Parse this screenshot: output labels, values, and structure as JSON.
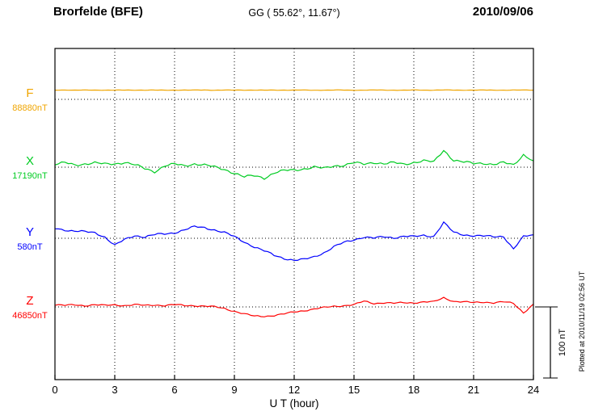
{
  "header": {
    "station": "Brorfelde (BFE)",
    "coords": "GG ( 55.62°,  11.67°)",
    "date": "2010/09/06"
  },
  "scale_bar": {
    "label": "100 nT"
  },
  "footer": {
    "note": "Plotted at 2010/11/19 02:56 UT"
  },
  "chart_data": {
    "type": "line",
    "title": "Brorfelde (BFE) magnetogram",
    "subtitle": "GG ( 55.62°,  11.67°)",
    "date": "2010/09/06",
    "xlabel": "U T (hour)",
    "xlim": [
      0,
      24
    ],
    "xticks": [
      0,
      3,
      6,
      9,
      12,
      15,
      18,
      21,
      24
    ],
    "x_step_hours": 0.5,
    "grid": "dotted-vertical-at-ticks",
    "scale_bar_nT": 100,
    "frame_color": "#000000",
    "series": [
      {
        "name": "F",
        "baseline_value_label": "88880nT",
        "baseline_nT": 88880,
        "color": "#f0a500",
        "baseline_frac": 0.1537,
        "values_nT_offset": [
          13,
          13.2,
          12.9,
          13,
          13.1,
          13,
          12.9,
          13,
          13.1,
          13,
          13,
          12.9,
          13.1,
          13,
          13,
          13.2,
          12.9,
          13,
          13,
          13.1,
          13,
          12.9,
          13,
          13.1,
          13,
          13,
          12.9,
          13,
          13.1,
          13,
          12.9,
          13,
          13.1,
          13,
          13,
          12.9,
          13.1,
          13,
          13,
          13.2,
          12.9,
          13,
          13.1,
          13,
          12.9,
          13,
          13.1,
          13,
          13
        ]
      },
      {
        "name": "X",
        "baseline_value_label": "17190nT",
        "baseline_nT": 17190,
        "color": "#00cc22",
        "baseline_frac": 0.3585,
        "values_nT_offset": [
          4,
          6,
          3,
          5,
          6,
          4,
          5,
          7,
          3,
          -2,
          -6,
          2,
          4,
          2,
          5,
          3,
          0,
          -3,
          -8,
          -14,
          -12,
          -15,
          -8,
          -5,
          -4,
          -2,
          0,
          -2,
          2,
          3,
          6,
          4,
          7,
          5,
          6,
          4,
          7,
          9,
          7,
          24,
          10,
          7,
          5,
          6,
          4,
          6,
          3,
          18,
          9
        ]
      },
      {
        "name": "Y",
        "baseline_value_label": "580nT",
        "baseline_nT": 580,
        "color": "#0000ff",
        "baseline_frac": 0.5732,
        "values_nT_offset": [
          14,
          12,
          10,
          9,
          8,
          2,
          -10,
          -2,
          4,
          2,
          5,
          6,
          8,
          12,
          16,
          15,
          12,
          8,
          2,
          -5,
          -12,
          -18,
          -24,
          -28,
          -31,
          -30,
          -26,
          -20,
          -12,
          -6,
          -2,
          2,
          0,
          2,
          1,
          3,
          2,
          4,
          3,
          22,
          8,
          5,
          4,
          3,
          2,
          3,
          -15,
          2,
          5
        ]
      },
      {
        "name": "Z",
        "baseline_value_label": "46850nT",
        "baseline_nT": 46850,
        "color": "#ff0000",
        "baseline_frac": 0.7805,
        "values_nT_offset": [
          3,
          2,
          3,
          2,
          3,
          2,
          3,
          2,
          3,
          2,
          3,
          2,
          3,
          2,
          2,
          1,
          0,
          -2,
          -6,
          -10,
          -13,
          -13,
          -12,
          -10,
          -7,
          -5,
          -3,
          -1,
          1,
          2,
          3,
          8,
          5,
          6,
          5,
          6,
          6,
          7,
          7,
          13,
          8,
          7,
          6,
          7,
          6,
          7,
          5,
          -8,
          4
        ]
      }
    ]
  }
}
